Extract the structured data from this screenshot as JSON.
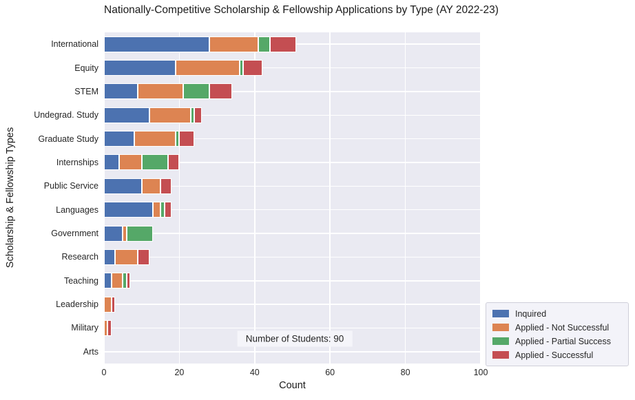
{
  "figure": {
    "background": "#ffffff",
    "plot_background": "#eaeaf2",
    "gridline_color": "#ffffff"
  },
  "chart_data": {
    "type": "bar",
    "orientation": "horizontal",
    "stacked": true,
    "title": "Nationally-Competitive Scholarship & Fellowship Applications by Type (AY 2022-23)",
    "xlabel": "Count",
    "ylabel": "Scholarship & Fellowship Types",
    "xlim": [
      0,
      100
    ],
    "xticks": [
      0,
      20,
      40,
      60,
      80,
      100
    ],
    "grid": true,
    "legend_position": "lower right",
    "categories": [
      "International",
      "Equity",
      "STEM",
      "Undegrad. Study",
      "Graduate Study",
      "Internships",
      "Public Service",
      "Languages",
      "Government",
      "Research",
      "Teaching",
      "Leadership",
      "Military",
      "Arts"
    ],
    "series": [
      {
        "name": "Inquired",
        "color": "#4c72b0",
        "values": [
          28,
          19,
          9,
          12,
          8,
          4,
          10,
          13,
          5,
          3,
          2,
          0,
          0,
          0
        ]
      },
      {
        "name": "Applied - Not Successful",
        "color": "#dd8452",
        "values": [
          13,
          17,
          12,
          11,
          11,
          6,
          5,
          2,
          1,
          6,
          3,
          2,
          1,
          0
        ]
      },
      {
        "name": "Applied - Partial Success",
        "color": "#55a868",
        "values": [
          3,
          1,
          7,
          1,
          1,
          7,
          0,
          1,
          7,
          0,
          1,
          0,
          0,
          0
        ]
      },
      {
        "name": "Applied - Successful",
        "color": "#c44e52",
        "values": [
          7,
          5,
          6,
          2,
          4,
          3,
          3,
          2,
          0,
          3,
          1,
          1,
          1,
          0
        ]
      }
    ],
    "annotation": "Number of Students: 90"
  }
}
